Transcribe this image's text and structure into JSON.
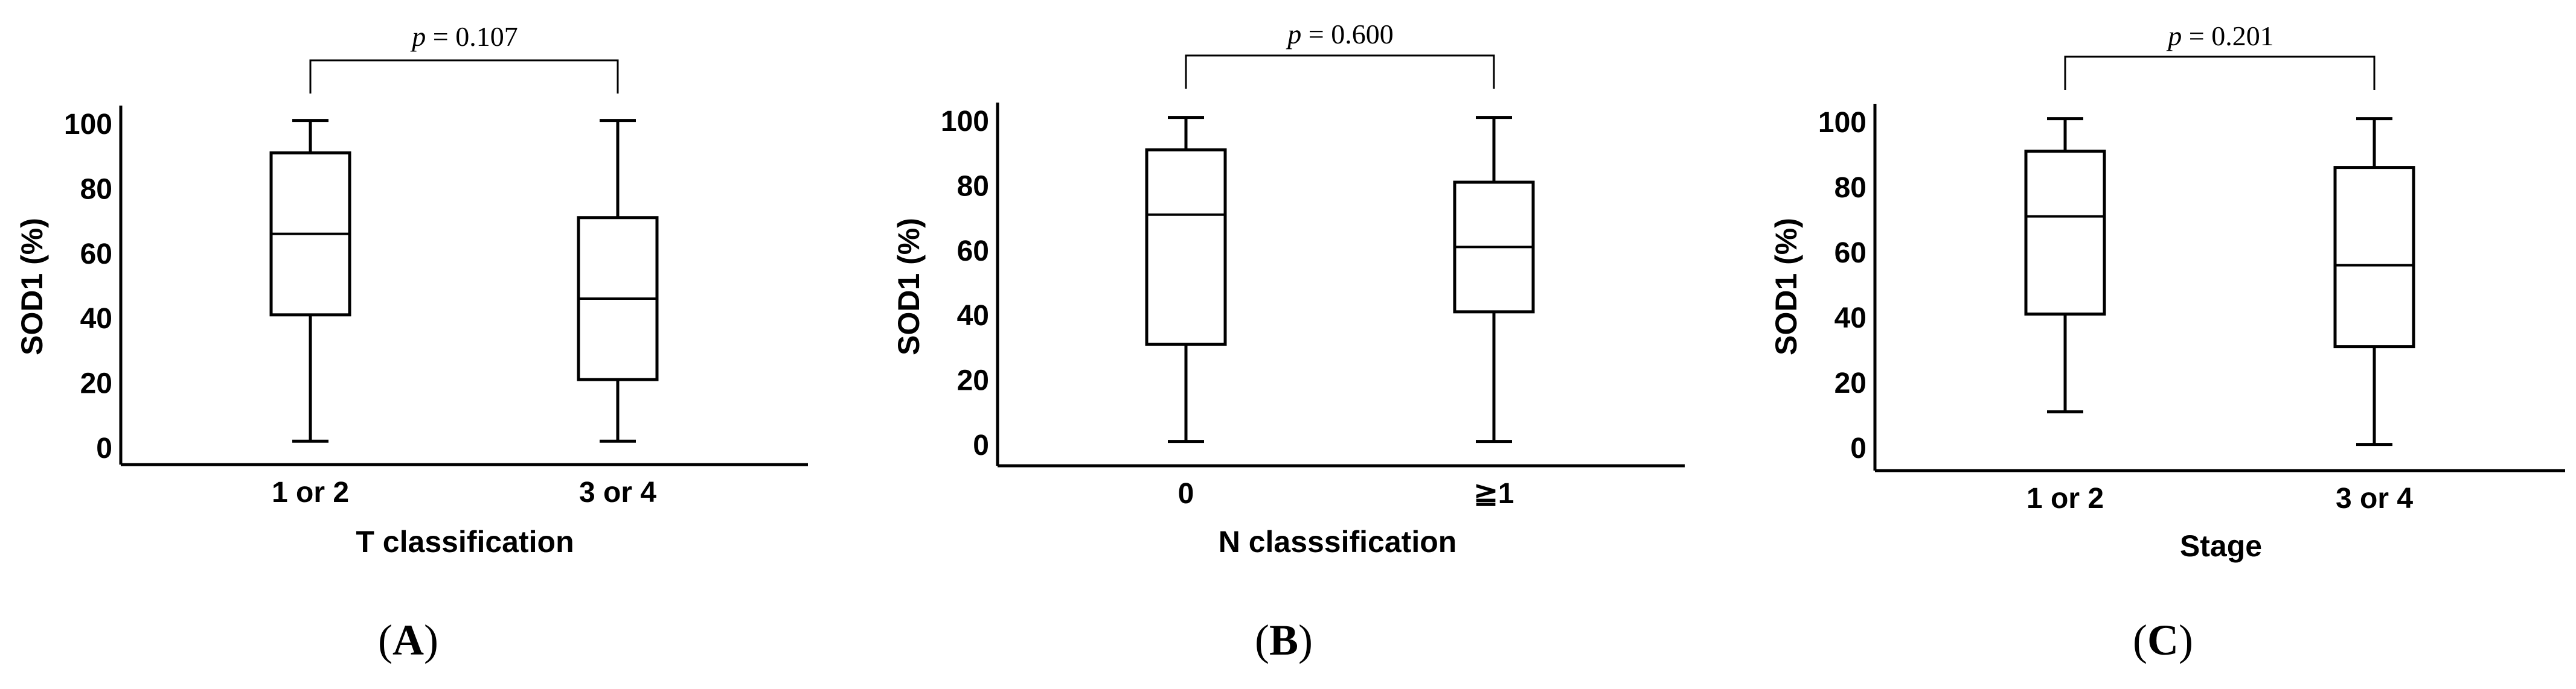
{
  "chart_data": [
    {
      "type": "box",
      "panel_label": {
        "open": "(",
        "letter": "A",
        "close": ")"
      },
      "xlabel": "T classification",
      "ylabel": "SOD1 (%)",
      "ylim": [
        0,
        100
      ],
      "yticks": [
        0,
        20,
        40,
        60,
        80,
        100
      ],
      "categories": [
        "1 or 2",
        "3 or 4"
      ],
      "boxes": [
        {
          "category": "1 or 2",
          "min": 2,
          "q1": 41,
          "median": 66,
          "q3": 91,
          "max": 101
        },
        {
          "category": "3 or 4",
          "min": 2,
          "q1": 21,
          "median": 46,
          "q3": 71,
          "max": 101
        }
      ],
      "annotation": {
        "italic": "p",
        "rest": " = 0.107"
      }
    },
    {
      "type": "box",
      "panel_label": {
        "open": "(",
        "letter": "B",
        "close": ")"
      },
      "xlabel": "N classsification",
      "ylabel": "SOD1 (%)",
      "ylim": [
        0,
        100
      ],
      "yticks": [
        0,
        20,
        40,
        60,
        80,
        100
      ],
      "categories": [
        "0",
        "≧1"
      ],
      "boxes": [
        {
          "category": "0",
          "min": 1,
          "q1": 31,
          "median": 71,
          "q3": 91,
          "max": 101
        },
        {
          "category": "≧1",
          "min": 1,
          "q1": 41,
          "median": 61,
          "q3": 81,
          "max": 101
        }
      ],
      "annotation": {
        "italic": "p",
        "rest": " = 0.600"
      }
    },
    {
      "type": "box",
      "panel_label": {
        "open": "(",
        "letter": "C",
        "close": ")"
      },
      "xlabel": "Stage",
      "ylabel": "SOD1 (%)",
      "ylim": [
        0,
        100
      ],
      "yticks": [
        0,
        20,
        40,
        60,
        80,
        100
      ],
      "categories": [
        "1 or 2",
        "3 or 4"
      ],
      "boxes": [
        {
          "category": "1 or 2",
          "min": 11,
          "q1": 41,
          "median": 71,
          "q3": 91,
          "max": 101
        },
        {
          "category": "3 or 4",
          "min": 1,
          "q1": 31,
          "median": 56,
          "q3": 86,
          "max": 101
        }
      ],
      "annotation": {
        "italic": "p",
        "rest": " = 0.201"
      }
    }
  ]
}
